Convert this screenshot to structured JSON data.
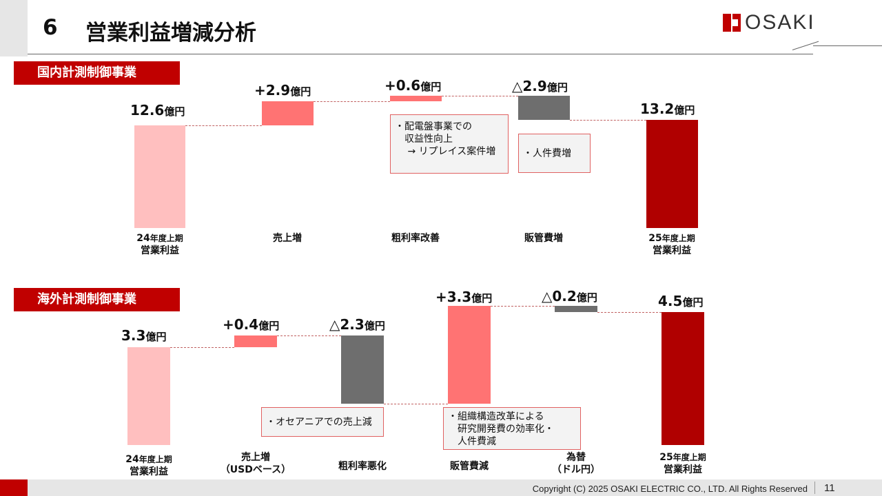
{
  "header": {
    "number": "6",
    "title": "営業利益増減分析",
    "logo": "OSAKI"
  },
  "colors": {
    "base": "#ffbfbf",
    "increase": "#ff7373",
    "decrease": "#6e6e6e",
    "result": "#b00000",
    "accent": "#c00000"
  },
  "domestic": {
    "label": "国内計測制御事業",
    "values": {
      "start": {
        "num": "12.6",
        "unit": "億円"
      },
      "sales": {
        "num": "+2.9",
        "unit": "億円"
      },
      "margin": {
        "num": "+0.6",
        "unit": "億円"
      },
      "sga": {
        "num": "△2.9",
        "unit": "億円"
      },
      "end": {
        "num": "13.2",
        "unit": "億円"
      }
    },
    "categories": {
      "start": {
        "num": "24",
        "suffix": "年度上期",
        "line2": "営業利益"
      },
      "sales": {
        "line1": "売上増"
      },
      "margin": {
        "line1": "粗利率改善"
      },
      "sga": {
        "line1": "販管費増"
      },
      "end": {
        "num": "25",
        "suffix": "年度上期",
        "line2": "営業利益"
      }
    },
    "notes": {
      "margin": [
        "・配電盤事業での",
        "　収益性向上",
        "　 → リプレイス案件増"
      ],
      "sga": [
        "・人件費増"
      ]
    }
  },
  "overseas": {
    "label": "海外計測制御事業",
    "values": {
      "start": {
        "num": "3.3",
        "unit": "億円"
      },
      "sales": {
        "num": "+0.4",
        "unit": "億円"
      },
      "margin": {
        "num": "△2.3",
        "unit": "億円"
      },
      "sga": {
        "num": "+3.3",
        "unit": "億円"
      },
      "fx": {
        "num": "△0.2",
        "unit": "億円"
      },
      "end": {
        "num": "4.5",
        "unit": "億円"
      }
    },
    "categories": {
      "start": {
        "num": "24",
        "suffix": "年度上期",
        "line2": "営業利益"
      },
      "sales": {
        "line1": "売上増",
        "line2": "（USDベース）"
      },
      "margin": {
        "line1": "粗利率悪化"
      },
      "sga": {
        "line1": "販管費減"
      },
      "fx": {
        "line1": "為替",
        "line2": "（ドル円）"
      },
      "end": {
        "num": "25",
        "suffix": "年度上期",
        "line2": "営業利益"
      }
    },
    "notes": {
      "sales": [
        "・オセアニアでの売上減"
      ],
      "sga": [
        "・組織構造改革による",
        "　研究開発費の効率化・",
        "　人件費減"
      ]
    }
  },
  "footer": {
    "copyright": "Copyright (C) 2025 OSAKI ELECTRIC CO., LTD. All Rights Reserved",
    "page": "11"
  }
}
